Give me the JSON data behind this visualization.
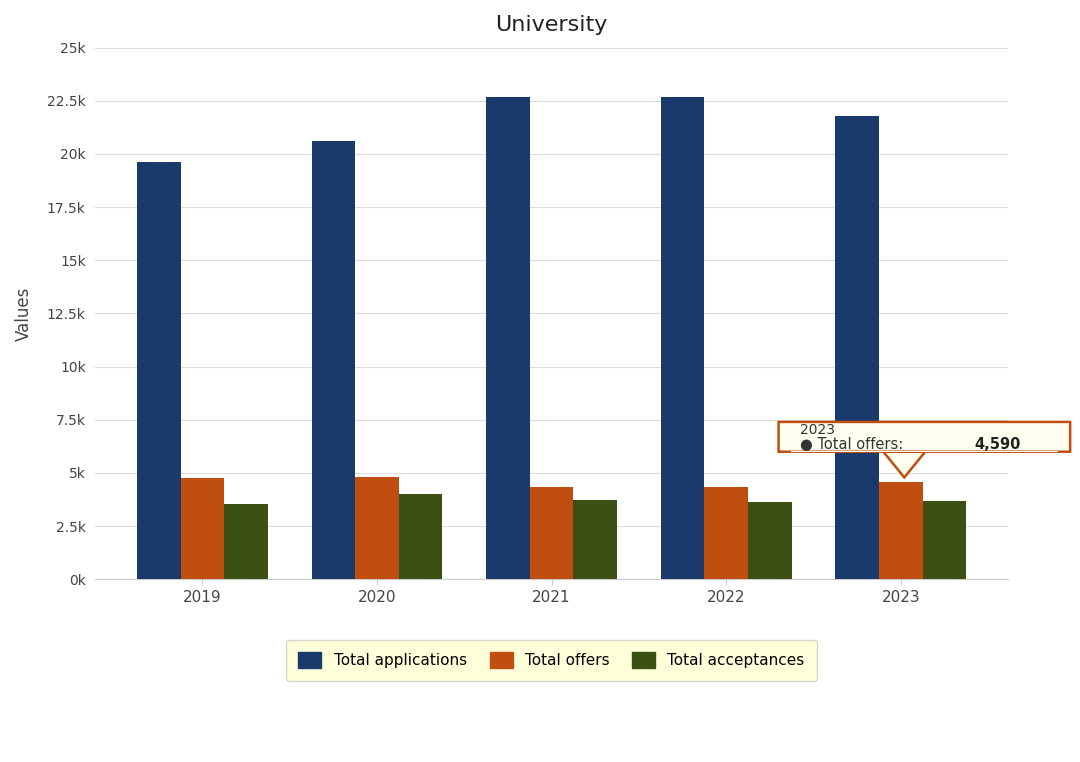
{
  "title": "University",
  "ylabel": "Values",
  "years": [
    2019,
    2020,
    2021,
    2022,
    2023
  ],
  "total_applications": [
    19600,
    20600,
    22700,
    22700,
    21800
  ],
  "total_offers": [
    4750,
    4800,
    4350,
    4350,
    4590
  ],
  "total_acceptances": [
    3550,
    4000,
    3750,
    3650,
    3700
  ],
  "color_applications": "#1a3a6b",
  "color_offers": "#c04e10",
  "color_acceptances": "#3d5014",
  "ylim": [
    0,
    25000
  ],
  "yticks": [
    0,
    2500,
    5000,
    7500,
    10000,
    12500,
    15000,
    17500,
    20000,
    22500,
    25000
  ],
  "ytick_labels": [
    "0k",
    "2.5k",
    "5k",
    "7.5k",
    "10k",
    "12.5k",
    "15k",
    "17.5k",
    "20k",
    "22.5k",
    "25k"
  ],
  "legend_labels": [
    "Total applications",
    "Total offers",
    "Total acceptances"
  ],
  "tooltip_year": "2023",
  "tooltip_series": "Total offers",
  "tooltip_value": "4,590",
  "background_color": "#ffffff",
  "grid_color": "#dddddd",
  "legend_facecolor": "#ffffd0",
  "tooltip_facecolor": "#fffff0",
  "tooltip_edgecolor": "#c04e10"
}
